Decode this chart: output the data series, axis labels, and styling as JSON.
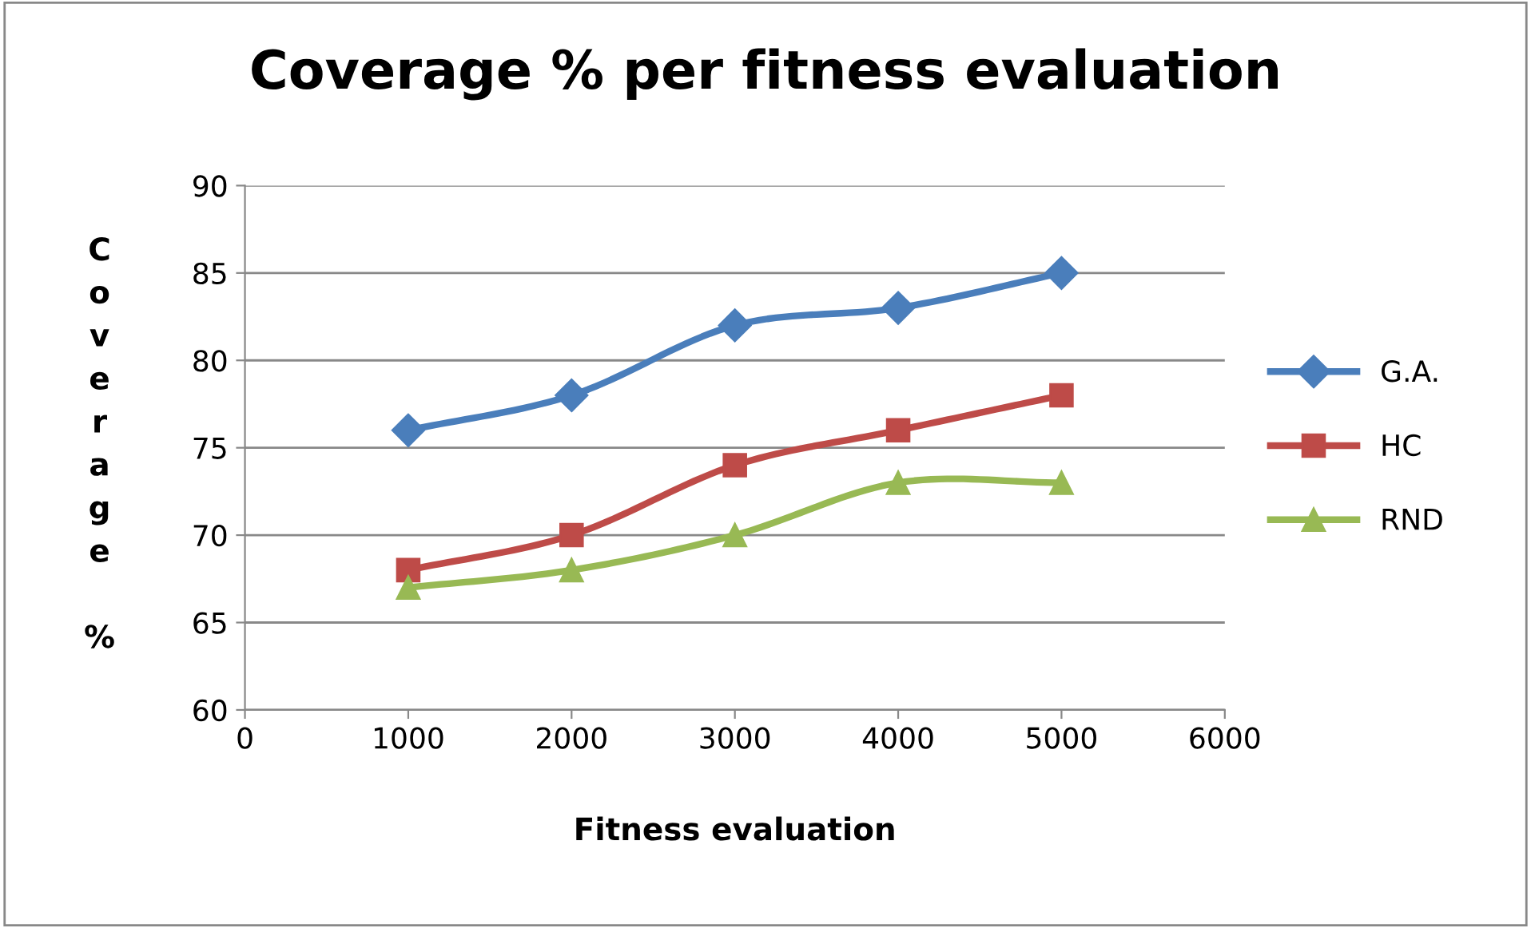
{
  "chart_data": {
    "type": "line",
    "title": "Coverage % per fitness evaluation",
    "xlabel": "Fitness evaluation",
    "ylabel": "Coverage %",
    "x": [
      1000,
      2000,
      3000,
      4000,
      5000
    ],
    "series": [
      {
        "name": "G.A.",
        "color": "#4a7ebb",
        "marker": "diamond",
        "values": [
          76,
          78,
          82,
          83,
          85
        ]
      },
      {
        "name": "HC",
        "color": "#be4b48",
        "marker": "square",
        "values": [
          68,
          70,
          74,
          76,
          78
        ]
      },
      {
        "name": "RND",
        "color": "#98b954",
        "marker": "triangle",
        "values": [
          67,
          68,
          70,
          73,
          73
        ]
      }
    ],
    "xlim": [
      0,
      6000
    ],
    "xticks": [
      0,
      1000,
      2000,
      3000,
      4000,
      5000,
      6000
    ],
    "ylim": [
      60,
      90
    ],
    "yticks": [
      60,
      65,
      70,
      75,
      80,
      85,
      90
    ],
    "grid": "y",
    "legend": "right",
    "line_style": "solid"
  }
}
